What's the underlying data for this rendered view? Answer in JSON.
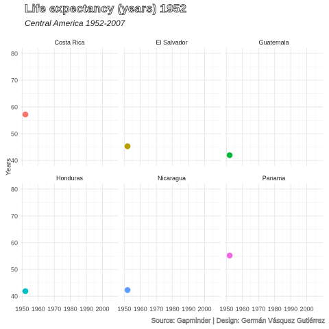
{
  "title": "Life expectancy (years) 1952",
  "subtitle": "Central America 1952-2007",
  "caption": "Source: Gapminder | Design: Germán Vásquez Gutiérrez",
  "chart_data": {
    "type": "scatter",
    "ylabel": "Years",
    "xlabel": "",
    "x_ticks": [
      1950,
      1960,
      1970,
      1980,
      1990,
      2000
    ],
    "y_ticks": [
      40,
      50,
      60,
      70,
      80
    ],
    "xlim": [
      1949,
      2010
    ],
    "ylim": [
      38,
      82
    ],
    "grid": true,
    "facets": [
      {
        "name": "Costa Rica",
        "x": 1952,
        "y": 57.2,
        "color": "#F8766D"
      },
      {
        "name": "El Salvador",
        "x": 1952,
        "y": 45.3,
        "color": "#B79F00"
      },
      {
        "name": "Guatemala",
        "x": 1952,
        "y": 42.0,
        "color": "#00BA38"
      },
      {
        "name": "Honduras",
        "x": 1952,
        "y": 41.9,
        "color": "#00BFC4"
      },
      {
        "name": "Nicaragua",
        "x": 1952,
        "y": 42.3,
        "color": "#619CFF"
      },
      {
        "name": "Panama",
        "x": 1952,
        "y": 55.2,
        "color": "#F564E3"
      }
    ]
  }
}
